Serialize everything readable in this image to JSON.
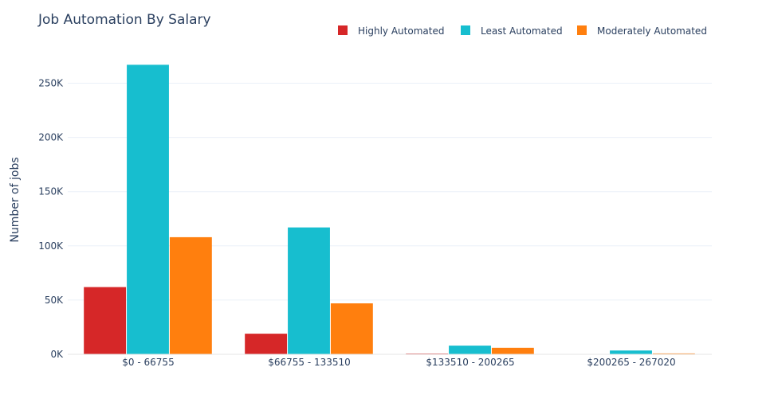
{
  "chart_data": {
    "type": "bar",
    "title": "Job Automation By Salary",
    "xlabel": "",
    "ylabel": "Number of jobs",
    "categories": [
      "$0 - 66755",
      "$66755 - 133510",
      "$133510 - 200265",
      "$200265 - 267020"
    ],
    "series": [
      {
        "name": "Highly Automated",
        "color": "#d62728",
        "values": [
          62000,
          19000,
          700,
          200
        ]
      },
      {
        "name": "Least Automated",
        "color": "#17becf",
        "values": [
          267000,
          117000,
          8000,
          3500
        ]
      },
      {
        "name": "Moderately Automated",
        "color": "#ff7f0e",
        "values": [
          108000,
          47000,
          6000,
          800
        ]
      }
    ],
    "ylim": [
      0,
      268000
    ],
    "yticks": [
      0,
      50000,
      100000,
      150000,
      200000,
      250000
    ],
    "ytick_labels": [
      "0K",
      "50K",
      "100K",
      "150K",
      "200K",
      "250K"
    ],
    "grid": true,
    "legend_position": "top-right"
  }
}
